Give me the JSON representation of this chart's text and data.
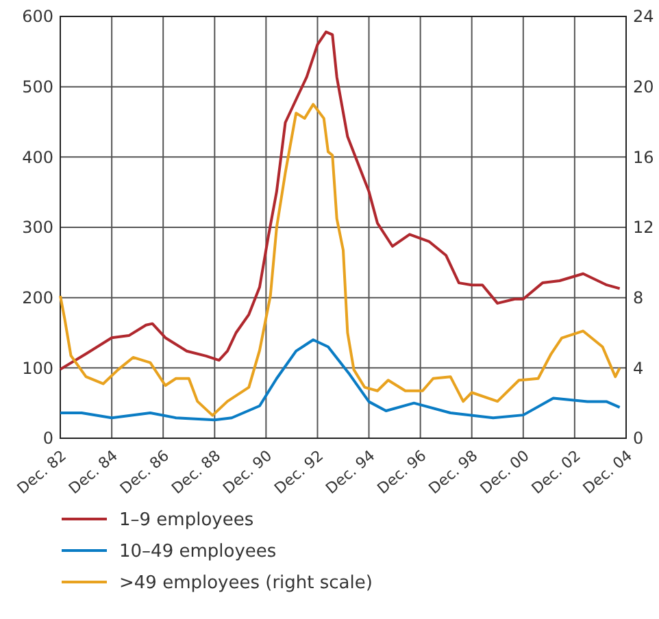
{
  "chart_data": {
    "type": "line",
    "xlim": [
      "1982-12",
      "2004-12"
    ],
    "xticks": [
      {
        "value": "1982-12",
        "label": "Dec. 82"
      },
      {
        "value": "1984-12",
        "label": "Dec. 84"
      },
      {
        "value": "1986-12",
        "label": "Dec. 86"
      },
      {
        "value": "1988-12",
        "label": "Dec. 88"
      },
      {
        "value": "1990-12",
        "label": "Dec. 90"
      },
      {
        "value": "1992-12",
        "label": "Dec. 92"
      },
      {
        "value": "1994-12",
        "label": "Dec. 94"
      },
      {
        "value": "1996-12",
        "label": "Dec. 96"
      },
      {
        "value": "1998-12",
        "label": "Dec. 98"
      },
      {
        "value": "2000-12",
        "label": "Dec. 00"
      },
      {
        "value": "2002-12",
        "label": "Dec. 02"
      },
      {
        "value": "2004-12",
        "label": "Dec. 04"
      }
    ],
    "ylim": [
      0,
      600
    ],
    "yticks": [
      0,
      100,
      200,
      300,
      400,
      500,
      600
    ],
    "y2lim": [
      0,
      24
    ],
    "y2ticks": [
      0,
      4,
      8,
      12,
      16,
      20,
      24
    ],
    "grid": true,
    "legend": "bottom",
    "line_style": "solid",
    "series": [
      {
        "name": "1–9 employees",
        "color": "#b0282e",
        "x": [
          "1982-12",
          "1983-12",
          "1984-12",
          "1985-08",
          "1986-04",
          "1986-07",
          "1987-01",
          "1987-11",
          "1988-08",
          "1989-02",
          "1989-06",
          "1989-10",
          "1990-04",
          "1990-09",
          "1991-01",
          "1991-05",
          "1991-09",
          "1992-03",
          "1992-07",
          "1992-12",
          "1993-04",
          "1993-07",
          "1993-09",
          "1994-02",
          "1994-12",
          "1995-04",
          "1995-11",
          "1996-07",
          "1997-04",
          "1997-12",
          "1998-06",
          "1998-12",
          "1999-05",
          "1999-12",
          "2000-08",
          "2000-12",
          "2001-09",
          "2002-05",
          "2003-04",
          "2004-03",
          "2004-09"
        ],
        "values": [
          98,
          120,
          143,
          146,
          161,
          163,
          143,
          124,
          117,
          111,
          124,
          150,
          176,
          215,
          286,
          351,
          449,
          488,
          514,
          560,
          578,
          574,
          514,
          429,
          351,
          306,
          273,
          290,
          280,
          260,
          221,
          218,
          218,
          192,
          198,
          198,
          221,
          224,
          234,
          218,
          213
        ]
      },
      {
        "name": "10–49 employees",
        "color": "#0a7cc4",
        "x": [
          "1982-12",
          "1983-10",
          "1984-12",
          "1986-06",
          "1987-06",
          "1988-12",
          "1989-08",
          "1990-09",
          "1991-05",
          "1992-02",
          "1992-10",
          "1993-05",
          "1994-03",
          "1994-12",
          "1995-08",
          "1996-09",
          "1998-02",
          "1999-10",
          "2000-12",
          "2002-02",
          "2003-06",
          "2004-03",
          "2004-09"
        ],
        "values": [
          36,
          36,
          29,
          36,
          29,
          26,
          29,
          46,
          85,
          124,
          140,
          130,
          91,
          52,
          39,
          50,
          36,
          29,
          33,
          57,
          52,
          52,
          44
        ]
      },
      {
        "name": ">49 employees (right scale)",
        "color": "#e8a21f",
        "axis": "y2",
        "x": [
          "1982-12",
          "1983-02",
          "1983-05",
          "1983-12",
          "1984-08",
          "1985-03",
          "1985-10",
          "1986-06",
          "1987-01",
          "1987-06",
          "1987-12",
          "1988-04",
          "1988-11",
          "1989-06",
          "1990-04",
          "1990-09",
          "1991-02",
          "1991-05",
          "1991-09",
          "1992-02",
          "1992-06",
          "1992-10",
          "1993-03",
          "1993-05",
          "1993-07",
          "1993-09",
          "1993-12",
          "1994-02",
          "1994-05",
          "1994-10",
          "1995-04",
          "1995-09",
          "1996-05",
          "1997-01",
          "1997-06",
          "1998-02",
          "1998-08",
          "1998-12",
          "1999-12",
          "2000-10",
          "2001-07",
          "2002-01",
          "2002-06",
          "2003-04",
          "2004-01",
          "2004-07",
          "2004-09"
        ],
        "values": [
          8.1,
          6.8,
          4.7,
          3.5,
          3.1,
          3.9,
          4.6,
          4.3,
          3.0,
          3.4,
          3.4,
          2.1,
          1.3,
          2.1,
          2.9,
          5.0,
          8.1,
          12.0,
          15.1,
          18.5,
          18.2,
          19.0,
          18.2,
          16.3,
          16.1,
          12.5,
          10.7,
          6.0,
          3.9,
          2.9,
          2.7,
          3.3,
          2.7,
          2.7,
          3.4,
          3.5,
          2.1,
          2.6,
          2.1,
          3.3,
          3.4,
          4.8,
          5.7,
          6.1,
          5.2,
          3.5,
          4.0
        ]
      }
    ]
  }
}
